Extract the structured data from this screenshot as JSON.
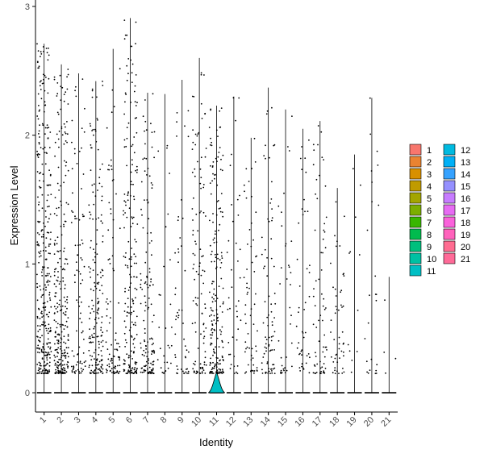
{
  "chart_data": {
    "type": "violin",
    "xlabel": "Identity",
    "ylabel": "Expression Level",
    "ylim": [
      -0.15,
      3.05
    ],
    "yticks": [
      0,
      1,
      2,
      3
    ],
    "categories": [
      "1",
      "2",
      "3",
      "4",
      "5",
      "6",
      "7",
      "8",
      "9",
      "10",
      "11",
      "12",
      "13",
      "14",
      "15",
      "16",
      "17",
      "18",
      "19",
      "20",
      "21"
    ],
    "colors": [
      "#F8766D",
      "#EA8331",
      "#D89000",
      "#C09B00",
      "#A3A500",
      "#7CAE00",
      "#39B600",
      "#00BB4E",
      "#00BF7D",
      "#00C1A3",
      "#00BFC4",
      "#00BAE0",
      "#00B0F6",
      "#35A2FF",
      "#9590FF",
      "#C77CFF",
      "#E76BF3",
      "#FA62DB",
      "#FF62BC",
      "#FF6C91",
      "#FF6A98"
    ],
    "groups": [
      {
        "id": "1",
        "max": 2.71,
        "points": 320,
        "violin_peak": 0
      },
      {
        "id": "2",
        "max": 2.55,
        "points": 260,
        "violin_peak": 0
      },
      {
        "id": "3",
        "max": 2.48,
        "points": 90,
        "violin_peak": 0
      },
      {
        "id": "4",
        "max": 2.42,
        "points": 180,
        "violin_peak": 0
      },
      {
        "id": "5",
        "max": 2.67,
        "points": 90,
        "violin_peak": 0
      },
      {
        "id": "6",
        "max": 2.91,
        "points": 200,
        "violin_peak": 0
      },
      {
        "id": "7",
        "max": 2.33,
        "points": 140,
        "violin_peak": 0
      },
      {
        "id": "8",
        "max": 2.32,
        "points": 30,
        "violin_peak": 0
      },
      {
        "id": "9",
        "max": 2.43,
        "points": 50,
        "violin_peak": 0
      },
      {
        "id": "10",
        "max": 2.6,
        "points": 110,
        "violin_peak": 0
      },
      {
        "id": "11",
        "max": 2.23,
        "points": 190,
        "violin_peak": 0.16
      },
      {
        "id": "12",
        "max": 2.3,
        "points": 40,
        "violin_peak": 0
      },
      {
        "id": "13",
        "max": 1.98,
        "points": 60,
        "violin_peak": 0
      },
      {
        "id": "14",
        "max": 2.37,
        "points": 80,
        "violin_peak": 0
      },
      {
        "id": "15",
        "max": 2.2,
        "points": 35,
        "violin_peak": 0
      },
      {
        "id": "16",
        "max": 2.05,
        "points": 45,
        "violin_peak": 0
      },
      {
        "id": "17",
        "max": 2.11,
        "points": 70,
        "violin_peak": 0
      },
      {
        "id": "18",
        "max": 1.59,
        "points": 50,
        "violin_peak": 0
      },
      {
        "id": "19",
        "max": 1.85,
        "points": 12,
        "violin_peak": 0
      },
      {
        "id": "20",
        "max": 2.29,
        "points": 25,
        "violin_peak": 0
      },
      {
        "id": "21",
        "max": 0.9,
        "points": 4,
        "violin_peak": 0
      }
    ],
    "legend_position": "right",
    "grid": false
  }
}
